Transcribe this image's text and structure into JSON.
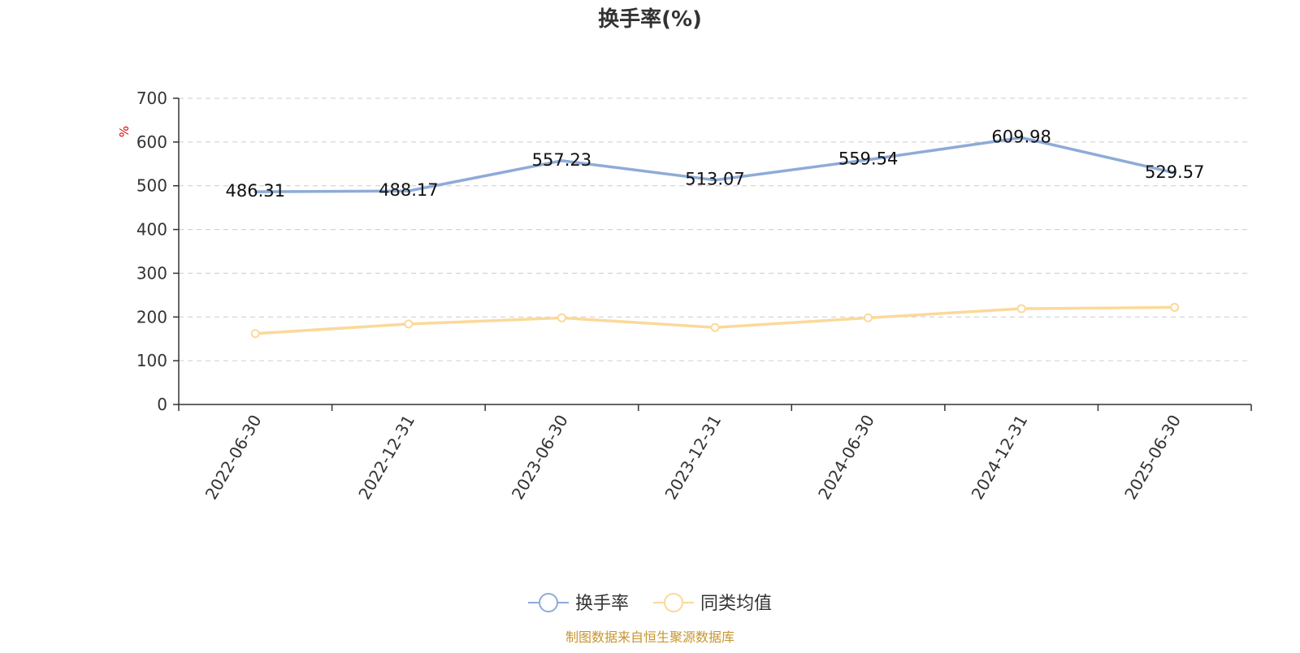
{
  "chart_data": {
    "type": "line",
    "title": "换手率(%)",
    "yunit": "%",
    "ylim": [
      0,
      700
    ],
    "yticks": [
      0,
      100,
      200,
      300,
      400,
      500,
      600,
      700
    ],
    "categories": [
      "2022-06-30",
      "2022-12-31",
      "2023-06-30",
      "2023-12-31",
      "2024-06-30",
      "2024-12-31",
      "2025-06-30"
    ],
    "grid": true,
    "legend_position": "bottom-center",
    "series": [
      {
        "name": "换手率",
        "color": "#8eabd8",
        "values": [
          486.31,
          488.17,
          557.23,
          513.07,
          559.54,
          609.98,
          529.57
        ],
        "labels": [
          "486.31",
          "488.17",
          "557.23",
          "513.07",
          "559.54",
          "609.98",
          "529.57"
        ],
        "show_labels": true,
        "show_markers": false
      },
      {
        "name": "同类均值",
        "color": "#fbd99a",
        "values": [
          162,
          184,
          198,
          176,
          198,
          219,
          222
        ],
        "show_labels": false,
        "show_markers": true
      }
    ],
    "source": "制图数据来自恒生聚源数据库"
  }
}
